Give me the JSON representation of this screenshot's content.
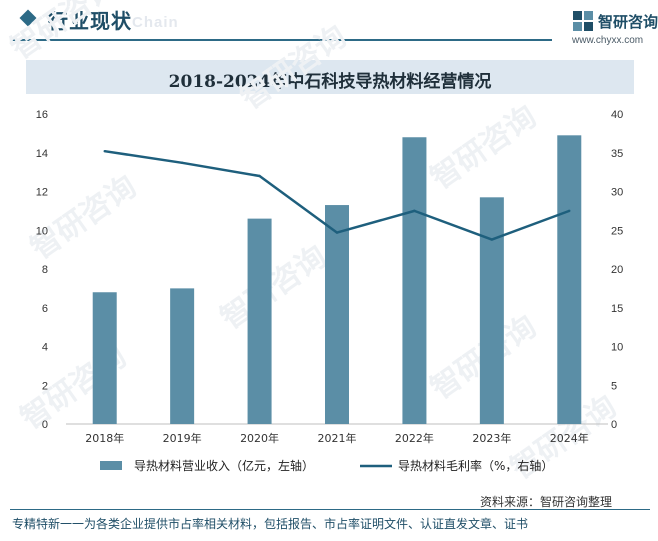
{
  "header": {
    "section_title": "行业现状",
    "section_subtitle": "Chain"
  },
  "logo": {
    "name": "智研咨询",
    "url": "www.chyxx.com",
    "icon": "zhiyan-logo-icon"
  },
  "chart_data": {
    "type": "bar",
    "title": "2018-2024年中石科技导热材料经营情况",
    "categories": [
      "2018年",
      "2019年",
      "2020年",
      "2021年",
      "2022年",
      "2023年",
      "2024年"
    ],
    "series": [
      {
        "name": "导热材料营业收入（亿元，左轴）",
        "type": "bar",
        "axis": "left",
        "color": "#5b8ea6",
        "values": [
          6.8,
          7.0,
          10.6,
          11.3,
          14.8,
          11.7,
          14.9
        ]
      },
      {
        "name": "导热材料毛利率（%，右轴）",
        "type": "line",
        "axis": "right",
        "color": "#1e5f7d",
        "values": [
          35.2,
          33.7,
          32.0,
          24.7,
          27.5,
          23.8,
          27.5
        ]
      }
    ],
    "y_left": {
      "min": 0,
      "max": 16,
      "ticks": [
        "0",
        "2",
        "4",
        "6",
        "8",
        "10",
        "12",
        "14",
        "16"
      ]
    },
    "y_right": {
      "min": 0,
      "max": 40,
      "ticks": [
        "0",
        "5",
        "10",
        "15",
        "20",
        "25",
        "30",
        "35",
        "40"
      ]
    },
    "grid": false,
    "legend_position": "bottom"
  },
  "source": "资料来源：智研咨询整理",
  "footer": "专精特新一一为各类企业提供市占率相关材料，包括报告、市占率证明文件、认证直发文章、证书",
  "watermark": "智研咨询"
}
